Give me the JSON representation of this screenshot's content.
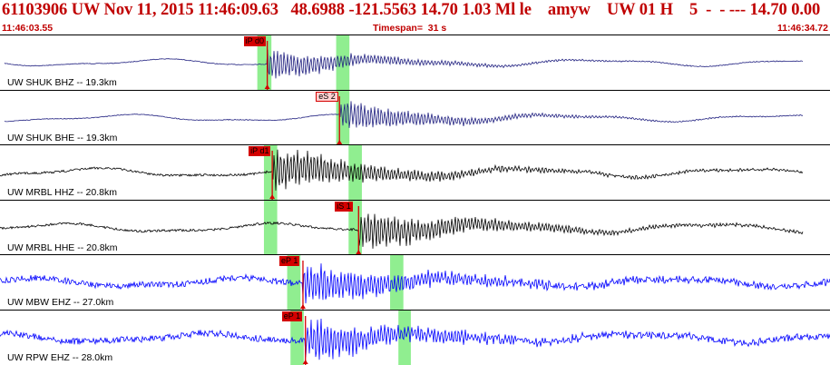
{
  "header": {
    "title": "61103906 UW Nov 11, 2015 11:46:09.63   48.6988 -121.5563 14.70 1.03 Ml le    amyw    UW 01 H    5  -  - --- 14.70 0.00",
    "start_time": "11:46:03.55",
    "timespan": "Timespan=  31 s",
    "end_time": "11:46:34.72"
  },
  "colors": {
    "header_text": "#c00000",
    "trace_navy": "#202080",
    "trace_black": "#000000",
    "trace_blue": "#0000ff",
    "pick_red": "#d40000",
    "window_green": "#90ee90"
  },
  "channels": [
    {
      "label": "UW SHUK BHZ -- 19.3km",
      "color": "#202080",
      "windows": [
        [
          0.31,
          0.327
        ],
        [
          0.405,
          0.421
        ]
      ],
      "pick": {
        "label": "iP d0",
        "x": 0.322,
        "style": "red"
      }
    },
    {
      "label": "UW SHUK BHE -- 19.3km",
      "color": "#202080",
      "windows": [
        [
          0.405,
          0.421
        ]
      ],
      "pick": {
        "label": "eS 2",
        "x": 0.409,
        "style": "pink"
      }
    },
    {
      "label": "UW MRBL HHZ -- 20.8km",
      "color": "#000000",
      "windows": [
        [
          0.318,
          0.334
        ],
        [
          0.42,
          0.436
        ]
      ],
      "pick": {
        "label": "iP d1",
        "x": 0.328,
        "style": "red"
      }
    },
    {
      "label": "UW MRBL HHE -- 20.8km",
      "color": "#000000",
      "windows": [
        [
          0.318,
          0.334
        ],
        [
          0.42,
          0.436
        ]
      ],
      "pick": {
        "label": "iS 1",
        "x": 0.432,
        "style": "red"
      }
    },
    {
      "label": "UW MBW EHZ -- 27.0km",
      "color": "#0000ff",
      "windows": [
        [
          0.346,
          0.362
        ],
        [
          0.47,
          0.486
        ]
      ],
      "pick": {
        "label": "eP 1",
        "x": 0.365,
        "style": "red"
      }
    },
    {
      "label": "UW RPW EHZ -- 28.0km",
      "color": "#0000ff",
      "windows": [
        [
          0.35,
          0.366
        ],
        [
          0.48,
          0.495
        ]
      ],
      "pick": {
        "label": "eP 1",
        "x": 0.368,
        "style": "red"
      }
    }
  ]
}
